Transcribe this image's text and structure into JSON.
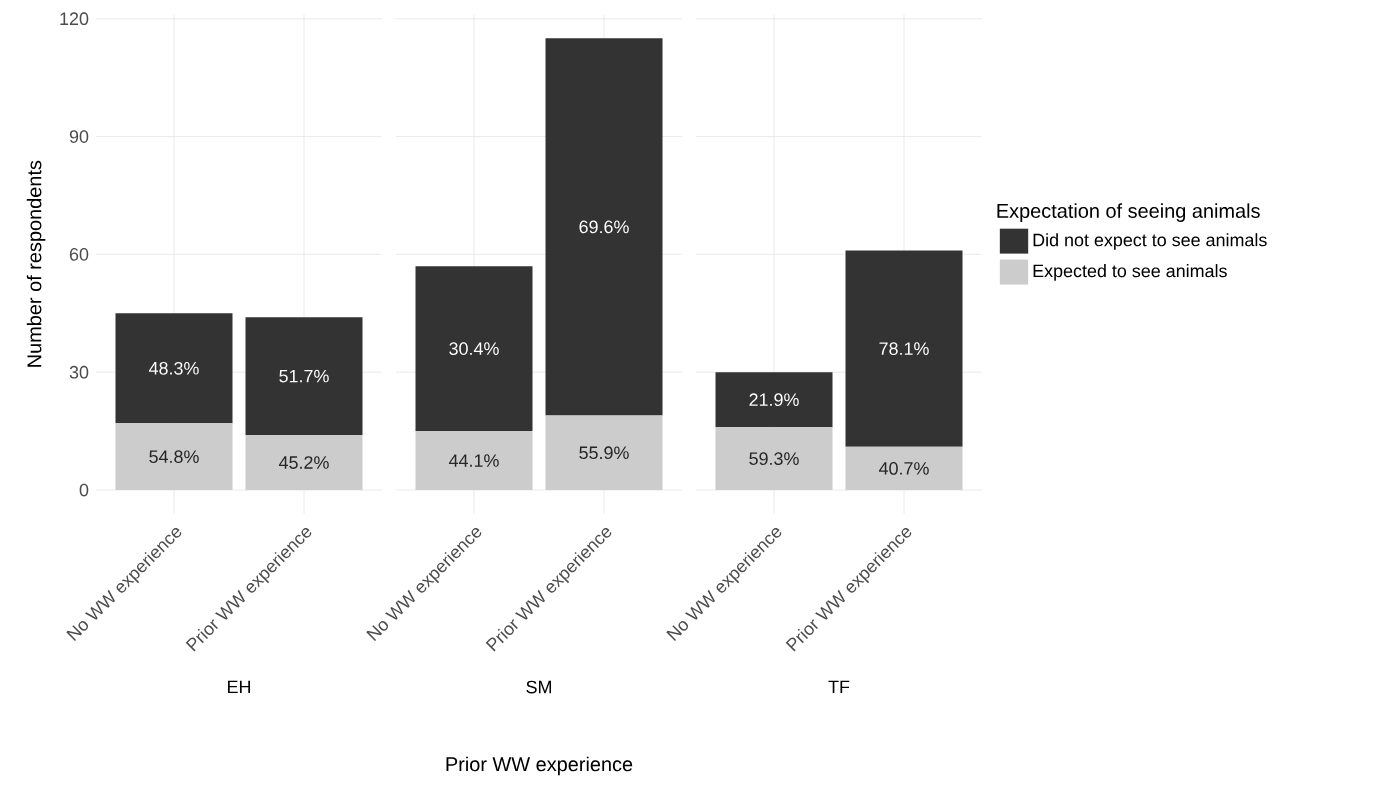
{
  "chart_data": [
    {
      "type": "bar",
      "stacked": true,
      "title": "EH",
      "ylabel": "Number of respondents",
      "categories": [
        "No WW experience",
        "Prior WW experience"
      ],
      "ylim": [
        -6,
        121
      ],
      "yticks": [
        0,
        30,
        60,
        90,
        120
      ],
      "grid": true,
      "annotations": [
        "54.8%",
        "45.2%",
        "48.3%",
        "51.7%"
      ],
      "series": [
        {
          "color": "#cccccc",
          "values": [
            17,
            14
          ]
        },
        {
          "color": "#333333",
          "values": [
            28,
            30
          ]
        }
      ]
    },
    {
      "type": "bar",
      "stacked": true,
      "title": "SM",
      "xlabel": "Prior WW experience",
      "categories": [
        "No WW experience",
        "Prior WW experience"
      ],
      "ylim": [
        -6,
        121
      ],
      "yticks": [
        0,
        30,
        60,
        90,
        120
      ],
      "grid": true,
      "tick_labels": "x",
      "annotations": [
        "44.1%",
        "55.9%",
        "30.4%",
        "69.6%"
      ],
      "series": [
        {
          "color": "#cccccc",
          "values": [
            15,
            19
          ]
        },
        {
          "color": "#333333",
          "values": [
            42,
            96
          ]
        }
      ]
    },
    {
      "type": "bar",
      "stacked": true,
      "title": "TF",
      "legend_title": "Expectation of seeing animals",
      "legend": "right",
      "categories": [
        "No WW experience",
        "Prior WW experience"
      ],
      "ylim": [
        -6,
        121
      ],
      "yticks": [
        0,
        30,
        60,
        90,
        120
      ],
      "grid": true,
      "tick_labels": "x",
      "annotations": [
        "59.3%",
        "40.7%",
        "21.9%",
        "78.1%"
      ],
      "series": [
        {
          "name": "Expected to see animals",
          "color": "#cccccc",
          "values": [
            16,
            11
          ]
        },
        {
          "name": "Did not expect to see animals",
          "color": "#333333",
          "values": [
            14,
            50
          ]
        }
      ]
    }
  ]
}
